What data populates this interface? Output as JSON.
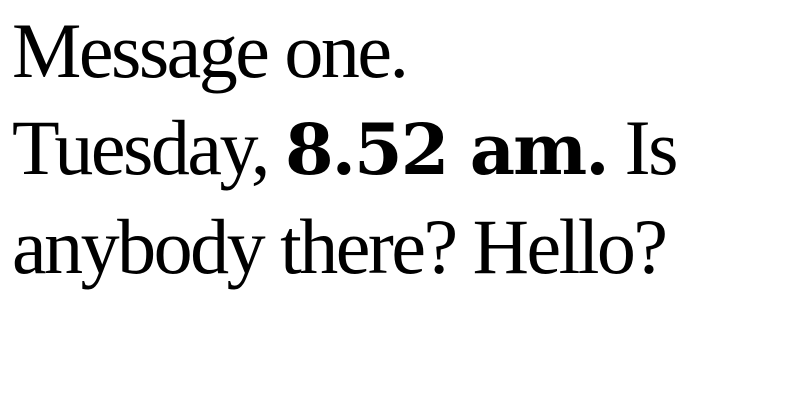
{
  "message": {
    "line1": "Message one.",
    "line2_start": "Tuesday,",
    "line2_bold": "8.52 am.",
    "line2_end": "Is",
    "line3": "anybody there? Hello?"
  },
  "colors": {
    "text": "#000000",
    "background": "#ffffff"
  }
}
